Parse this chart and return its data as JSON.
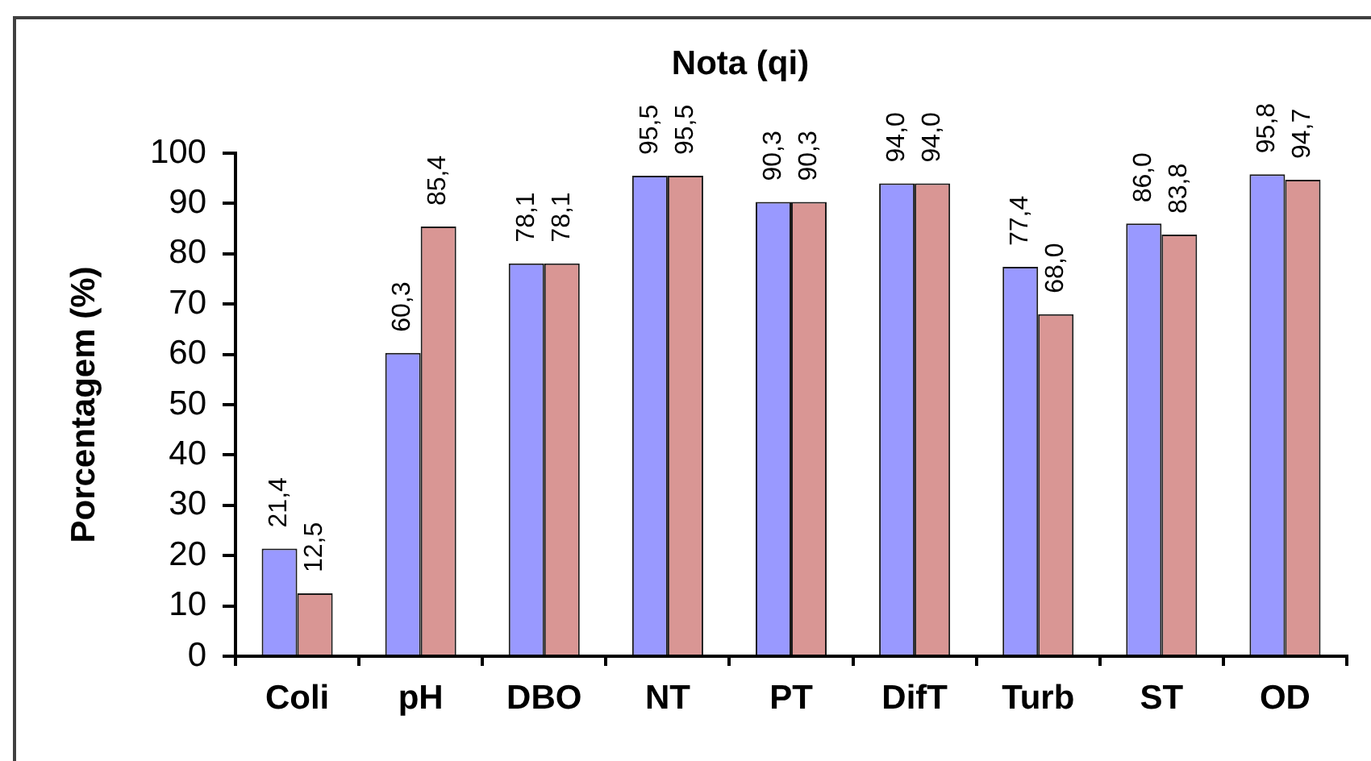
{
  "chart_data": {
    "type": "bar",
    "title": "Nota (qi)",
    "ylabel": "Porcentagem (%)",
    "categories": [
      "Coli",
      "pH",
      "DBO",
      "NT",
      "PT",
      "DifT",
      "Turb",
      "ST",
      "OD"
    ],
    "series": [
      {
        "color": "#9999ff",
        "values": [
          21.4,
          60.3,
          78.1,
          95.5,
          90.3,
          94.0,
          77.4,
          86.0,
          95.8
        ],
        "value_labels": [
          "21,4",
          "60,3",
          "78,1",
          "95,5",
          "90,3",
          "94,0",
          "77,4",
          "86,0",
          "95,8"
        ]
      },
      {
        "color": "#d99694",
        "values": [
          12.5,
          85.4,
          78.1,
          95.5,
          90.3,
          94.0,
          68.0,
          83.8,
          94.7
        ],
        "value_labels": [
          "12,5",
          "85,4",
          "78,1",
          "95,5",
          "90,3",
          "94,0",
          "68,0",
          "83,8",
          "94,7"
        ]
      }
    ],
    "ylim": [
      0,
      100
    ],
    "yticks": [
      0,
      10,
      20,
      30,
      40,
      50,
      60,
      70,
      80,
      90,
      100
    ],
    "grid": false,
    "legend": false
  }
}
